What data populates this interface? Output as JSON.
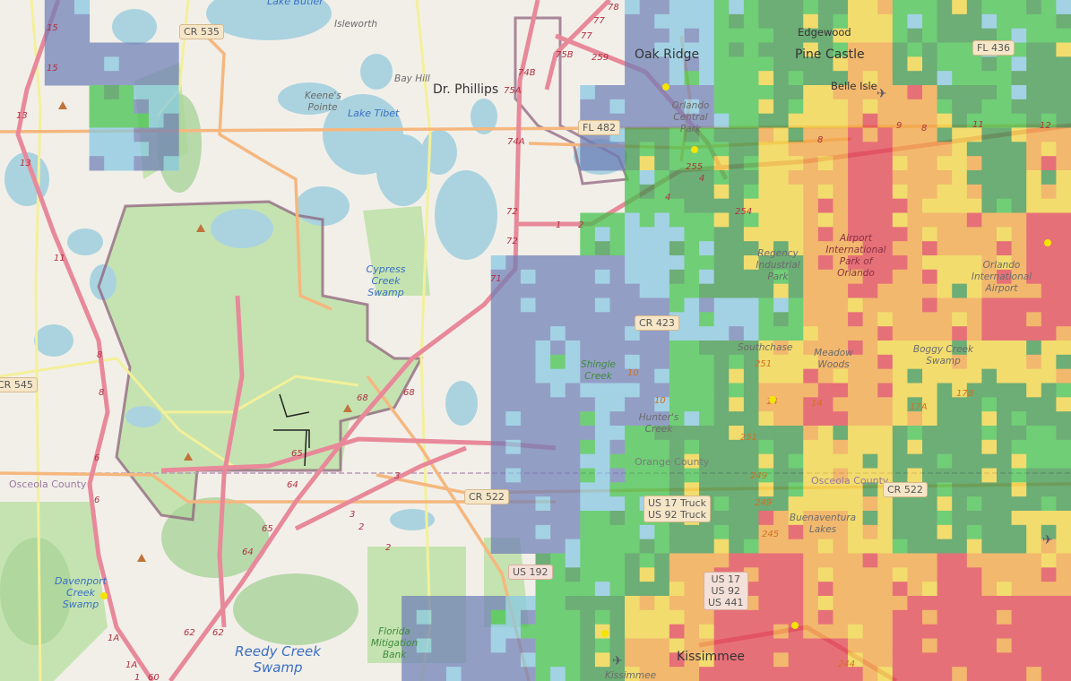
{
  "map": {
    "colors": {
      "land": "#f2efe9",
      "water": "#aad3df",
      "park": "#c8e6b0",
      "wetland": "#9fcf8f",
      "motorway": "#e8899a",
      "trunk": "#f5b77e",
      "secondary": "#f7f6a0",
      "boundary": "#8a5a78"
    },
    "places": [
      {
        "name": "Oak Ridge"
      },
      {
        "name": "Dr. Phillips"
      },
      {
        "name": "Pine Castle"
      },
      {
        "name": "Edgewood"
      },
      {
        "name": "Belle Isle"
      },
      {
        "name": "Kissimmee"
      }
    ],
    "areas": [
      "Isleworth",
      "Bay Hill",
      "Keene's Pointe",
      "Lake Butler",
      "Lake Tibet",
      "Orlando Central Park",
      "Regency Industrial Park",
      "Airport International Park of Orlando",
      "Orlando International Airport",
      "Southchase",
      "Meadow Woods",
      "Boggy Creek Swamp",
      "Hunter's Creek",
      "Buenaventura Lakes",
      "Kissimmee"
    ],
    "water_labels": [
      "Cypress Creek Swamp",
      "Davenport Creek Swamp",
      "Reedy Creek Swamp",
      "Shingle Creek",
      "Florida Mitigation Bank"
    ],
    "counties": [
      "Osceola County",
      "Orange County",
      "Osceola County"
    ],
    "shields": [
      "CR 535",
      "CR 545",
      "FL 482",
      "CR 423",
      "CR 522",
      "CR 522",
      "FL 436",
      "US 192",
      "US 17 Truck",
      "US 92 Truck",
      "US 17",
      "US 92",
      "US 441"
    ],
    "exits": [
      "15",
      "15",
      "13",
      "13",
      "11",
      "8",
      "8",
      "6",
      "6",
      "1A",
      "1A",
      "1",
      "60",
      "62",
      "62",
      "64",
      "64",
      "65",
      "65",
      "68",
      "68",
      "3",
      "3",
      "2",
      "2",
      "72",
      "72",
      "71",
      "74A",
      "75A",
      "75B",
      "74B",
      "77",
      "77",
      "78",
      "259",
      "255",
      "254",
      "4",
      "4",
      "1",
      "2",
      "8",
      "8",
      "9",
      "11",
      "12",
      "10",
      "10",
      "251",
      "251",
      "14",
      "14",
      "17A",
      "17B",
      "249",
      "249",
      "245",
      "244"
    ]
  },
  "radar": {
    "levels": [
      "none",
      "#6f7fb8",
      "#86c8e4",
      "#3fc24a",
      "#3a944a",
      "#f2d640",
      "#f3a43f",
      "#e2404e"
    ],
    "grid": [
      [
        0,
        1,
        0,
        0,
        0,
        0,
        0,
        0,
        0,
        0,
        0,
        0,
        0,
        0,
        1,
        2,
        3,
        4,
        4,
        5,
        3,
        4,
        3,
        3
      ],
      [
        0,
        1,
        1,
        1,
        0,
        0,
        0,
        0,
        0,
        0,
        0,
        0,
        0,
        0,
        1,
        2,
        3,
        4,
        4,
        6,
        4,
        3,
        3,
        4
      ],
      [
        0,
        0,
        3,
        2,
        0,
        0,
        0,
        0,
        0,
        0,
        0,
        0,
        0,
        1,
        1,
        1,
        3,
        4,
        5,
        6,
        6,
        4,
        3,
        4
      ],
      [
        0,
        0,
        2,
        1,
        0,
        0,
        0,
        0,
        0,
        0,
        0,
        0,
        0,
        1,
        4,
        3,
        4,
        5,
        6,
        7,
        6,
        5,
        4,
        6
      ],
      [
        0,
        0,
        0,
        0,
        0,
        0,
        0,
        0,
        0,
        0,
        0,
        0,
        0,
        0,
        3,
        4,
        4,
        5,
        6,
        7,
        6,
        5,
        4,
        5
      ],
      [
        0,
        0,
        0,
        0,
        0,
        0,
        0,
        0,
        0,
        0,
        0,
        0,
        0,
        3,
        2,
        3,
        4,
        5,
        6,
        7,
        6,
        6,
        6,
        7
      ],
      [
        0,
        0,
        0,
        0,
        0,
        0,
        0,
        0,
        0,
        0,
        0,
        1,
        1,
        1,
        2,
        3,
        4,
        4,
        6,
        7,
        6,
        5,
        6,
        7
      ],
      [
        0,
        0,
        0,
        0,
        0,
        0,
        0,
        0,
        0,
        0,
        0,
        1,
        1,
        1,
        1,
        2,
        2,
        3,
        6,
        6,
        6,
        6,
        7,
        7
      ],
      [
        0,
        0,
        0,
        0,
        0,
        0,
        0,
        0,
        0,
        0,
        0,
        1,
        2,
        1,
        1,
        3,
        4,
        5,
        6,
        6,
        5,
        5,
        5,
        5
      ],
      [
        0,
        0,
        0,
        0,
        0,
        0,
        0,
        0,
        0,
        0,
        0,
        1,
        1,
        2,
        1,
        3,
        4,
        6,
        7,
        6,
        5,
        4,
        4,
        4
      ],
      [
        0,
        0,
        0,
        0,
        0,
        0,
        0,
        0,
        0,
        0,
        0,
        1,
        1,
        2,
        3,
        4,
        4,
        4,
        5,
        5,
        4,
        4,
        4,
        3
      ],
      [
        0,
        0,
        0,
        0,
        0,
        0,
        0,
        0,
        0,
        0,
        0,
        1,
        1,
        2,
        3,
        4,
        4,
        4,
        5,
        5,
        4,
        4,
        4,
        4
      ],
      [
        0,
        0,
        0,
        0,
        0,
        0,
        0,
        0,
        0,
        0,
        0,
        1,
        1,
        3,
        3,
        4,
        4,
        6,
        6,
        5,
        4,
        4,
        4,
        5
      ],
      [
        0,
        0,
        0,
        0,
        0,
        0,
        0,
        0,
        0,
        0,
        0,
        0,
        3,
        3,
        4,
        6,
        7,
        7,
        6,
        6,
        6,
        7,
        6,
        6
      ],
      [
        0,
        0,
        0,
        0,
        0,
        0,
        0,
        0,
        0,
        1,
        1,
        2,
        3,
        4,
        5,
        6,
        7,
        7,
        6,
        6,
        7,
        7,
        7,
        7
      ],
      [
        0,
        0,
        0,
        0,
        0,
        0,
        0,
        0,
        0,
        1,
        1,
        1,
        3,
        4,
        6,
        6,
        7,
        7,
        7,
        6,
        7,
        7,
        7,
        7
      ]
    ]
  }
}
